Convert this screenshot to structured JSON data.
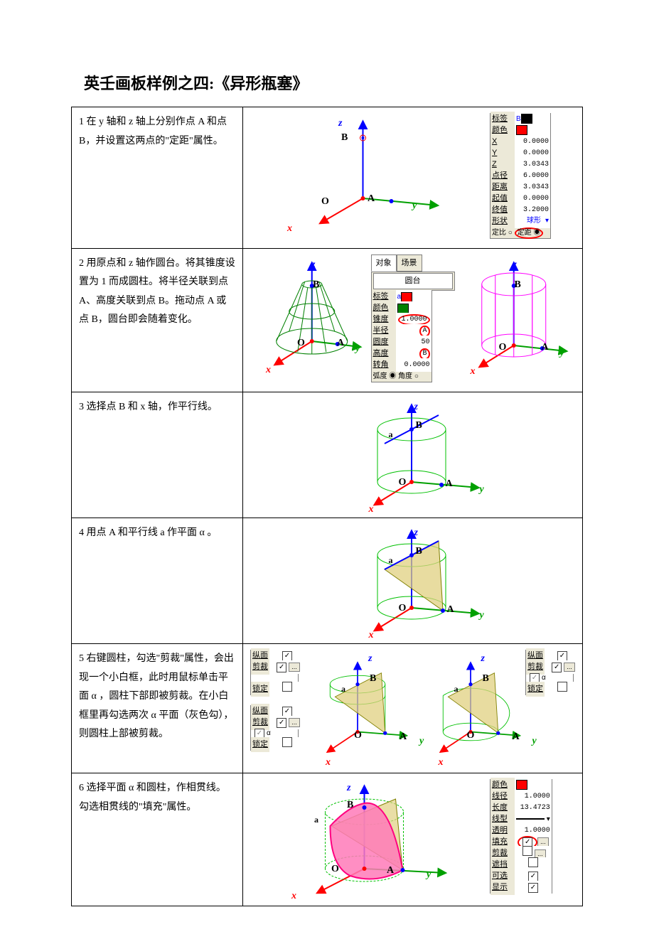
{
  "title": "英壬画板样例之四:《异形瓶塞》",
  "colors": {
    "axis_x": "#ff0000",
    "axis_y": "#00a000",
    "axis_z": "#0000ff",
    "cone": "#008000",
    "cylinder": "#ff00ff",
    "cylinder2": "#00c000",
    "plane_fill": "#e0d080",
    "plane_edge": "#808000",
    "intersect": "#ff0080",
    "slice_fill": "#ff4da0",
    "panel_bg": "#ece9d8",
    "black": "#000000",
    "red": "#ff0000",
    "green_swatch": "#008000",
    "grid": "#d0d0d0",
    "highlight": "#ff0000"
  },
  "axes": {
    "x": "x",
    "y": "y",
    "z": "z",
    "O": "O",
    "A": "A",
    "B": "B",
    "a": "a",
    "alpha": "α"
  },
  "steps": [
    {
      "text": "1 在 y 轴和 z 轴上分别作点 A 和点 B，并设置这两点的\"定距\"属性。",
      "panel1": {
        "rows": [
          {
            "lab": "标签",
            "val": "B",
            "color": "#0000ff",
            "swatch": "#000000"
          },
          {
            "lab": "颜色",
            "swatch": "#ff0000"
          },
          {
            "lab": "X",
            "val": "0.0000"
          },
          {
            "lab": "Y",
            "val": "0.0000"
          },
          {
            "lab": "Z",
            "val": "3.0343"
          },
          {
            "lab": "点径",
            "val": "6.0000"
          },
          {
            "lab": "距离",
            "val": "3.0343"
          },
          {
            "lab": "起值",
            "val": "0.0000"
          },
          {
            "lab": "终值",
            "val": "3.2000"
          },
          {
            "lab": "形状",
            "val": "球形",
            "blue": true,
            "dropdown": true
          },
          {
            "radio": "定比 ○  定距 ◉",
            "circled": true
          }
        ]
      }
    },
    {
      "text": "2 用原点和 z 轴作圆台。将其锥度设置为 1 而成圆柱。将半径关联到点 A、高度关联到点 B。拖动点 A 或点 B，圆台即会随着变化。",
      "tabs": [
        "对象",
        "场景"
      ],
      "dropdown_label": "圆台",
      "panel2": {
        "rows": [
          {
            "lab": "标签",
            "val": "a",
            "color": "#0000ff",
            "swatch": "#ff0000"
          },
          {
            "lab": "颜色",
            "swatch": "#008000"
          },
          {
            "lab": "锥度",
            "val": "1.0000",
            "circled": true
          },
          {
            "lab": "半径",
            "val": "A",
            "circled": true
          },
          {
            "lab": "圆度",
            "val": "50"
          },
          {
            "lab": "高度",
            "val": "B",
            "circled": true
          },
          {
            "lab": "转角",
            "val": "0.0000"
          },
          {
            "radio": "弧度 ◉  角度 ○"
          }
        ]
      }
    },
    {
      "text": "3 选择点 B 和 x 轴，作平行线。"
    },
    {
      "text": "4 用点 A 和平行线 a 作平面 α 。"
    },
    {
      "text": "5 右键圆柱，勾选\"剪裁\"属性，会出现一个小白框，此时用鼠标单击平面 α ，圆柱下部即被剪裁。在小白框里再勾选两次 α 平面（灰色勾），则圆柱上部被剪裁。",
      "panel_clip": {
        "rows": [
          {
            "lab": "纵面",
            "chk": "on"
          },
          {
            "lab": "剪裁",
            "chk": "on",
            "dots": true
          },
          {
            "list_item": ""
          },
          {
            "lab": "锁定",
            "chk": "off"
          }
        ]
      },
      "panel_clip2": {
        "rows": [
          {
            "lab": "纵面",
            "chk": "on"
          },
          {
            "lab": "剪裁",
            "chk": "on",
            "dots": true
          },
          {
            "list_item": "α",
            "list_chk": "gray"
          },
          {
            "lab": "锁定",
            "chk": "off"
          }
        ]
      }
    },
    {
      "text": "6 选择平面 α 和圆柱，作相贯线。勾选相贯线的\"填充\"属性。",
      "panel6": {
        "rows": [
          {
            "lab": "颜色",
            "swatch": "#ff0000"
          },
          {
            "lab": "线径",
            "val": "1.0000"
          },
          {
            "lab": "长度",
            "val": "13.4723"
          },
          {
            "lab": "线型",
            "dropdown": true,
            "swatch_line": true
          },
          {
            "lab": "透明",
            "val": "1.0000"
          },
          {
            "lab": "填充",
            "chk": "on",
            "dots": true,
            "circled": true
          },
          {
            "lab": "剪裁",
            "chk": "off",
            "dots": true
          },
          {
            "lab": "遮挡",
            "chk": "off"
          },
          {
            "lab": "可选",
            "chk": "on"
          },
          {
            "lab": "显示",
            "chk": "on"
          }
        ]
      }
    }
  ]
}
